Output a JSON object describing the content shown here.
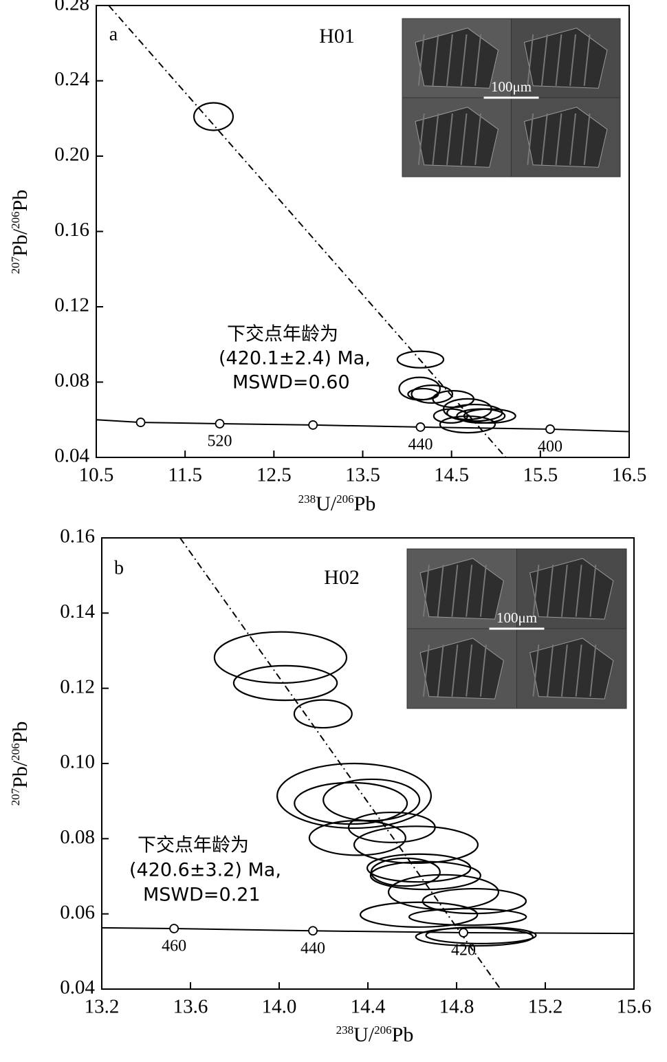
{
  "chart_data": [
    {
      "type": "concordia",
      "panel_label": "a",
      "title": "H01",
      "xlabel": [
        "238",
        "U/",
        "206",
        "Pb"
      ],
      "ylabel": [
        "207",
        "Pb/",
        "206",
        "Pb"
      ],
      "xlim": [
        10.5,
        16.5
      ],
      "ylim": [
        0.04,
        0.28
      ],
      "xticks": [
        10.5,
        11.5,
        12.5,
        13.5,
        14.5,
        15.5,
        16.5
      ],
      "yticks": [
        0.04,
        0.08,
        0.12,
        0.16,
        {
          "value": 0.2,
          "label": "0.20"
        },
        0.24,
        0.28
      ],
      "annotation": [
        "下交点年龄为",
        "(420.1±2.4) Ma,",
        "MSWD=0.60"
      ],
      "inset_scale": "100μm",
      "color": "#000000",
      "ellipses": {
        "x": [
          11.82,
          14.15,
          14.14,
          14.28,
          14.18,
          14.52,
          14.68,
          14.76,
          14.83,
          14.93,
          14.68,
          14.49
        ],
        "y": [
          0.221,
          0.092,
          0.0765,
          0.0736,
          0.0736,
          0.071,
          0.0656,
          0.0637,
          0.062,
          0.062,
          0.0575,
          0.062
        ],
        "x_err": [
          0.22,
          0.26,
          0.23,
          0.23,
          0.17,
          0.23,
          0.27,
          0.31,
          0.27,
          0.29,
          0.31,
          0.19
        ],
        "y_err": [
          0.0073,
          0.0044,
          0.006,
          0.0047,
          0.0029,
          0.0044,
          0.0055,
          0.0044,
          0.0037,
          0.0037,
          0.0044,
          0.0037
        ]
      },
      "concordia_curve": {
        "x": [
          10.5,
          11.0,
          11.89,
          12.94,
          14.15,
          15.61,
          16.5
        ],
        "y": [
          0.06,
          0.0586,
          0.0579,
          0.0572,
          0.0561,
          0.055,
          0.0537
        ]
      },
      "age_markers": {
        "x": [
          11.0,
          11.89,
          12.94,
          14.15,
          15.61
        ],
        "y": [
          0.0586,
          0.0579,
          0.0572,
          0.0561,
          0.055
        ],
        "ages": [
          null,
          520,
          null,
          440,
          400
        ]
      },
      "discordia": {
        "x": [
          10.64,
          15.11
        ],
        "y": [
          0.28,
          0.04
        ]
      }
    },
    {
      "type": "concordia",
      "panel_label": "b",
      "title": "H02",
      "xlabel": [
        "238",
        "U/",
        "206",
        "Pb"
      ],
      "ylabel": [
        "207",
        "Pb/",
        "206",
        "Pb"
      ],
      "xlim": [
        13.2,
        15.6
      ],
      "ylim": [
        0.04,
        0.16
      ],
      "xticks": [
        13.2,
        13.6,
        {
          "value": 14,
          "label": "14.0"
        },
        14.4,
        14.8,
        15.2,
        15.6
      ],
      "yticks": [
        0.04,
        0.06,
        0.08,
        {
          "value": 0.1,
          "label": "0.10"
        },
        0.12,
        0.14,
        0.16
      ],
      "annotation": [
        "下交点年龄为",
        "(420.6±3.2) Ma,",
        "MSWD=0.21"
      ],
      "inset_scale": "100μm",
      "color": "#000000",
      "ellipses": {
        "x": [
          14.006,
          14.028,
          14.198,
          14.338,
          14.323,
          14.416,
          14.508,
          14.353,
          14.617,
          14.63,
          14.66,
          14.57,
          14.741,
          14.88,
          14.63,
          14.85,
          14.88,
          14.91
        ],
        "y": [
          0.1282,
          0.1214,
          0.1132,
          0.0914,
          0.0894,
          0.0903,
          0.083,
          0.0802,
          0.0784,
          0.0722,
          0.0702,
          0.0711,
          0.0658,
          0.0634,
          0.0598,
          0.0592,
          0.0539,
          0.0543
        ],
        "x_err": [
          0.298,
          0.233,
          0.13,
          0.347,
          0.254,
          0.217,
          0.195,
          0.217,
          0.279,
          0.233,
          0.248,
          0.155,
          0.248,
          0.233,
          0.264,
          0.264,
          0.264,
          0.248
        ],
        "y_err": [
          0.0068,
          0.0046,
          0.0037,
          0.0086,
          0.0055,
          0.0055,
          0.004,
          0.0046,
          0.0049,
          0.0037,
          0.0037,
          0.0037,
          0.0046,
          0.0033,
          0.0033,
          0.0022,
          0.0024,
          0.0022
        ]
      },
      "concordia_curve": {
        "x": [
          13.2,
          13.526,
          14.152,
          14.831,
          15.6
        ],
        "y": [
          0.0563,
          0.0561,
          0.0555,
          0.055,
          0.0548
        ]
      },
      "age_markers": {
        "x": [
          13.526,
          14.152,
          14.831
        ],
        "y": [
          0.0561,
          0.0555,
          0.055
        ],
        "ages": [
          460,
          440,
          420
        ]
      },
      "discordia": {
        "x": [
          13.553,
          14.998
        ],
        "y": [
          0.16,
          0.04
        ]
      }
    }
  ]
}
